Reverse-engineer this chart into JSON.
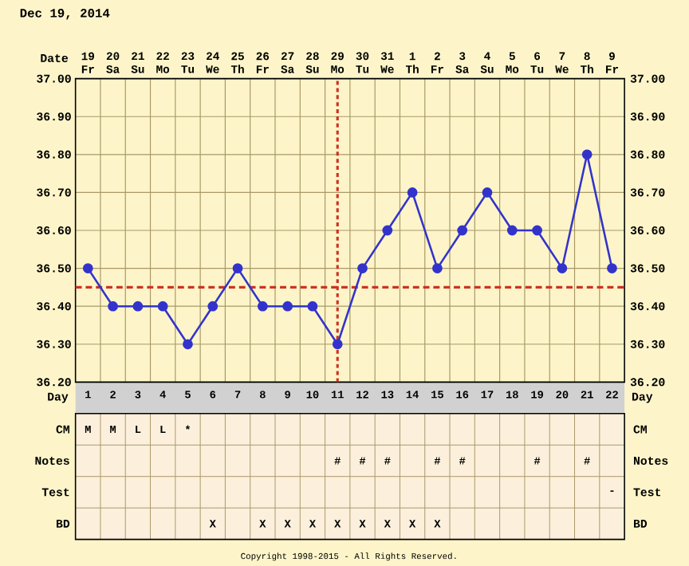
{
  "chart_data": [
    {
      "type": "line",
      "title": "Dec 19, 2014",
      "xlabel": "Day",
      "x2label": "Date",
      "x": [
        1,
        2,
        3,
        4,
        5,
        6,
        7,
        8,
        9,
        10,
        11,
        12,
        13,
        14,
        15,
        16,
        17,
        18,
        19,
        20,
        21,
        22
      ],
      "series": [
        {
          "color": "#3333cc",
          "values": [
            36.5,
            36.4,
            36.4,
            36.4,
            36.3,
            36.4,
            36.5,
            36.4,
            36.4,
            36.4,
            36.3,
            36.5,
            36.6,
            36.7,
            36.5,
            36.6,
            36.7,
            36.6,
            36.6,
            36.5,
            36.8,
            36.5
          ]
        }
      ],
      "xlim": [
        0.5,
        22.5
      ],
      "xticks": [
        1,
        2,
        3,
        4,
        5,
        6,
        7,
        8,
        9,
        10,
        11,
        12,
        13,
        14,
        15,
        16,
        17,
        18,
        19,
        20,
        21,
        22
      ],
      "x2lim": [
        "2014-12-18T12:00",
        "2015-01-09T12:00"
      ],
      "x2ticks": [
        {
          "value": "2014-12-19",
          "label": "19 Fr"
        },
        {
          "value": "2014-12-20",
          "label": "20 Sa"
        },
        {
          "value": "2014-12-21",
          "label": "21 Su"
        },
        {
          "value": "2014-12-22",
          "label": "22 Mo"
        },
        {
          "value": "2014-12-23",
          "label": "23 Tu"
        },
        {
          "value": "2014-12-24",
          "label": "24 We"
        },
        {
          "value": "2014-12-25",
          "label": "25 Th"
        },
        {
          "value": "2014-12-26",
          "label": "26 Fr"
        },
        {
          "value": "2014-12-27",
          "label": "27 Sa"
        },
        {
          "value": "2014-12-28",
          "label": "28 Su"
        },
        {
          "value": "2014-12-29",
          "label": "29 Mo"
        },
        {
          "value": "2014-12-30",
          "label": "30 Tu"
        },
        {
          "value": "2014-12-31",
          "label": "31 We"
        },
        {
          "value": "2015-01-01",
          "label": "1 Th"
        },
        {
          "value": "2015-01-02",
          "label": "2 Fr"
        },
        {
          "value": "2015-01-03",
          "label": "3 Sa"
        },
        {
          "value": "2015-01-04",
          "label": "4 Su"
        },
        {
          "value": "2015-01-05",
          "label": "5 Mo"
        },
        {
          "value": "2015-01-06",
          "label": "6 Tu"
        },
        {
          "value": "2015-01-07",
          "label": "7 We"
        },
        {
          "value": "2015-01-08",
          "label": "8 Th"
        },
        {
          "value": "2015-01-09",
          "label": "9 Fr"
        }
      ],
      "ylim": [
        36.2,
        37.0
      ],
      "yticks": [
        {
          "value": 36.2,
          "label": "36.20"
        },
        {
          "value": 36.3,
          "label": "36.30"
        },
        {
          "value": 36.4,
          "label": "36.40"
        },
        {
          "value": 36.5,
          "label": "36.50"
        },
        {
          "value": 36.6,
          "label": "36.60"
        },
        {
          "value": 36.7,
          "label": "36.70"
        },
        {
          "value": 36.8,
          "label": "36.80"
        },
        {
          "value": 36.9,
          "label": "36.90"
        },
        {
          "value": 37.0,
          "label": "37.00"
        }
      ],
      "y2lim": [
        36.2,
        37.0
      ],
      "y2ticks": [
        {
          "value": 36.2,
          "label": "36.20"
        },
        {
          "value": 36.3,
          "label": "36.30"
        },
        {
          "value": 36.4,
          "label": "36.40"
        },
        {
          "value": 36.5,
          "label": "36.50"
        },
        {
          "value": 36.6,
          "label": "36.60"
        },
        {
          "value": 36.7,
          "label": "36.70"
        },
        {
          "value": 36.8,
          "label": "36.80"
        },
        {
          "value": 36.9,
          "label": "36.90"
        },
        {
          "value": 37.0,
          "label": "37.00"
        }
      ],
      "grid": true,
      "marker": "circle",
      "line_style": "solid",
      "ref_lines": [
        {
          "axis": "y",
          "value": 36.45,
          "color": "#cc3322",
          "line_style": "dashed"
        },
        {
          "axis": "x",
          "value": 11,
          "color": "#cc3322",
          "line_style": "dotted"
        }
      ]
    },
    {
      "type": "heatmap",
      "categories": [
        null,
        null,
        null,
        null,
        null,
        null,
        null,
        null,
        null,
        null,
        null,
        null,
        null,
        null,
        null,
        null,
        null,
        null,
        null,
        null,
        null,
        null
      ],
      "y_categories": [
        "CM",
        "Notes",
        "Test",
        "BD"
      ],
      "y2_categories": [
        "CM",
        "Notes",
        "Test",
        "BD"
      ],
      "cells": [
        [
          null,
          null,
          null,
          null,
          null,
          null,
          null,
          null,
          null,
          null,
          null,
          null,
          null,
          null,
          null,
          null,
          null,
          null,
          null,
          null,
          null,
          null
        ],
        [
          null,
          null,
          null,
          null,
          null,
          null,
          null,
          null,
          null,
          null,
          null,
          null,
          null,
          null,
          null,
          null,
          null,
          null,
          null,
          null,
          null,
          null
        ],
        [
          null,
          null,
          null,
          null,
          null,
          null,
          null,
          null,
          null,
          null,
          null,
          null,
          null,
          null,
          null,
          null,
          null,
          null,
          null,
          null,
          null,
          null
        ],
        [
          null,
          null,
          null,
          null,
          null,
          null,
          null,
          null,
          null,
          null,
          null,
          null,
          null,
          null,
          null,
          null,
          null,
          null,
          null,
          null,
          null,
          null
        ]
      ],
      "cell_labels": [
        [
          "M",
          "M",
          "L",
          "L",
          "*",
          null,
          null,
          null,
          null,
          null,
          null,
          null,
          null,
          null,
          null,
          null,
          null,
          null,
          null,
          null,
          null,
          null
        ],
        [
          null,
          null,
          null,
          null,
          null,
          null,
          null,
          null,
          null,
          null,
          "#",
          "#",
          "#",
          null,
          "#",
          "#",
          null,
          null,
          "#",
          null,
          "#",
          null
        ],
        [
          null,
          null,
          null,
          null,
          null,
          null,
          null,
          null,
          null,
          null,
          null,
          null,
          null,
          null,
          null,
          null,
          null,
          null,
          null,
          null,
          null,
          "-"
        ],
        [
          null,
          null,
          null,
          null,
          null,
          "X",
          null,
          "X",
          "X",
          "X",
          "X",
          "X",
          "X",
          "X",
          "X",
          null,
          null,
          null,
          null,
          null,
          null,
          null
        ]
      ],
      "annotations": [
        "Copyright 1998-2015 - All Rights Reserved."
      ]
    }
  ]
}
